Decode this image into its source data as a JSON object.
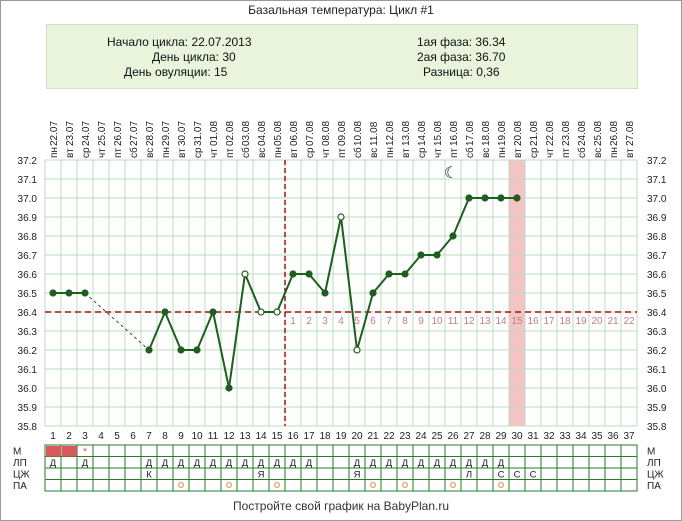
{
  "title": "Базальная температура: Цикл #1",
  "info": {
    "start": "Начало цикла: 22.07.2013",
    "cycle_day": "День цикла: 30",
    "ovulation_day": "День овуляции: 15",
    "phase1": "1ая фаза: 36.34",
    "phase2": "2ая фаза: 36.70",
    "diff": "Разница: 0,36"
  },
  "footer": "Постройте свой график на BabyPlan.ru",
  "colors": {
    "line": "#1e5e1e",
    "grid": "#bcdcbc",
    "coverline": "#aa1111",
    "highlight": "#f4c4c4",
    "period": "#d85a5a",
    "row_border": "#2a7a2a",
    "marker": "#e8a060"
  },
  "chart_data": {
    "type": "line",
    "x": [
      1,
      2,
      3,
      4,
      5,
      6,
      7,
      8,
      9,
      10,
      11,
      12,
      13,
      14,
      15,
      16,
      17,
      18,
      19,
      20,
      21,
      22,
      23,
      24,
      25,
      26,
      27,
      28,
      29,
      30,
      31,
      32,
      33,
      34,
      35,
      36,
      37
    ],
    "dates": [
      "22.07",
      "23.07",
      "24.07",
      "25.07",
      "26.07",
      "27.07",
      "28.07",
      "29.07",
      "30.07",
      "31.07",
      "01.08",
      "02.08",
      "03.08",
      "04.08",
      "05.08",
      "06.08",
      "07.08",
      "08.08",
      "09.08",
      "10.08",
      "11.08",
      "12.08",
      "13.08",
      "14.08",
      "15.08",
      "16.08",
      "17.08",
      "18.08",
      "19.08",
      "20.08",
      "21.08",
      "22.08",
      "23.08",
      "24.08",
      "25.08",
      "26.08",
      "27.08"
    ],
    "weekdays": [
      "пн",
      "вт",
      "ср",
      "чт",
      "пт",
      "сб",
      "вс",
      "пн",
      "вт",
      "ср",
      "чт",
      "пт",
      "сб",
      "вс",
      "пн",
      "вт",
      "ср",
      "чт",
      "пт",
      "сб",
      "вс",
      "пн",
      "вт",
      "ср",
      "чт",
      "пт",
      "сб",
      "вс",
      "пн",
      "вт",
      "ср",
      "чт",
      "пт",
      "сб",
      "вс",
      "пн",
      "вт"
    ],
    "temperatures": [
      36.5,
      36.5,
      36.5,
      null,
      null,
      null,
      36.2,
      36.4,
      36.2,
      36.2,
      36.4,
      36.0,
      36.6,
      36.4,
      36.4,
      36.6,
      36.6,
      36.5,
      36.9,
      36.2,
      36.5,
      36.6,
      36.6,
      36.7,
      36.7,
      36.8,
      37.0,
      37.0,
      37.0,
      37.0
    ],
    "hollow_days": [
      13,
      14,
      15,
      19,
      20
    ],
    "y_ticks": [
      "35.8",
      "35.9",
      "36.0",
      "36.1",
      "36.2",
      "36.3",
      "36.4",
      "36.5",
      "36.6",
      "36.7",
      "36.8",
      "36.9",
      "37.0",
      "37.1",
      "37.2"
    ],
    "ylim": [
      35.8,
      37.2
    ],
    "coverline": 36.4,
    "ovulation_day": 15,
    "highlight_day": 30,
    "post_ovulation_labels": [
      "1",
      "2",
      "3",
      "4",
      "5",
      "6",
      "7",
      "8",
      "9",
      "10",
      "11",
      "12",
      "13",
      "14",
      "15",
      "16",
      "17",
      "18",
      "19",
      "20",
      "21",
      "22"
    ],
    "rows": {
      "labels": [
        "М",
        "ЛП",
        "ЦЖ",
        "ПА"
      ],
      "M": {
        "period_days": [
          1,
          2
        ],
        "star_day": 3,
        "star": "*"
      },
      "LP": {
        "1": "Д",
        "3": "Д",
        "7": "Д",
        "8": "Д",
        "9": "Д",
        "10": "Д",
        "11": "Д",
        "12": "Д",
        "13": "Д",
        "14": "Д",
        "15": "Д",
        "16": "Д",
        "17": "Д",
        "20": "Д",
        "21": "Д",
        "22": "Д",
        "23": "Д",
        "24": "Д",
        "25": "Д",
        "26": "Д",
        "27": "Д",
        "28": "Д",
        "29": "Д"
      },
      "CZH": {
        "7": "К",
        "14": "Я",
        "20": "Я",
        "27": "Л",
        "29": "С",
        "30": "С",
        "31": "С"
      },
      "PA_days": [
        9,
        12,
        15,
        21,
        23,
        26,
        29
      ]
    }
  }
}
